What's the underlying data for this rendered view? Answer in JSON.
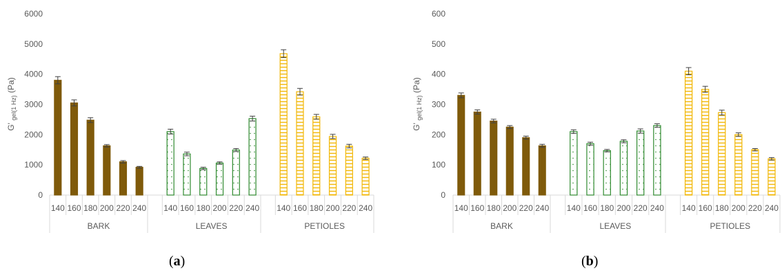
{
  "colors": {
    "bark": "#7f5a0a",
    "leaves": "#2f8a2f",
    "petioles": "#f2b705",
    "axis": "#d9d9d9",
    "text": "#595959",
    "error_bar": "#404040"
  },
  "fill_patterns": {
    "BARK": "solid",
    "LEAVES": "dotted",
    "PETIOLES": "horizontal-stripes"
  },
  "panels": [
    {
      "label_open": "(",
      "label_letter": "a",
      "label_close": ")"
    },
    {
      "label_open": "(",
      "label_letter": "b",
      "label_close": ")"
    }
  ],
  "chart_data": [
    {
      "type": "bar",
      "ylabel_main": "G'",
      "ylabel_sub": "gel(1 Hz)",
      "ylabel_unit": "(Pa)",
      "ylim": [
        0,
        6000
      ],
      "yticks": [
        0,
        1000,
        2000,
        3000,
        4000,
        5000,
        6000
      ],
      "grid": false,
      "groups": [
        {
          "name": "BARK",
          "categories": [
            "140",
            "160",
            "180",
            "200",
            "220",
            "240"
          ],
          "values": [
            3800,
            3050,
            2480,
            1630,
            1100,
            920
          ],
          "errors": [
            120,
            100,
            80,
            40,
            40,
            30
          ]
        },
        {
          "name": "LEAVES",
          "categories": [
            "140",
            "160",
            "180",
            "200",
            "220",
            "240"
          ],
          "values": [
            2100,
            1360,
            880,
            1060,
            1490,
            2530
          ],
          "errors": [
            80,
            60,
            40,
            40,
            50,
            80
          ]
        },
        {
          "name": "PETIOLES",
          "categories": [
            "140",
            "160",
            "180",
            "200",
            "220",
            "240"
          ],
          "values": [
            4680,
            3420,
            2590,
            1940,
            1620,
            1220
          ],
          "errors": [
            130,
            110,
            80,
            70,
            60,
            40
          ]
        }
      ]
    },
    {
      "type": "bar",
      "ylabel_main": "G'",
      "ylabel_sub": "gel(1 Hz)",
      "ylabel_unit": "(Pa)",
      "ylim": [
        0,
        600
      ],
      "yticks": [
        0,
        100,
        200,
        300,
        400,
        500,
        600
      ],
      "grid": false,
      "groups": [
        {
          "name": "BARK",
          "categories": [
            "140",
            "160",
            "180",
            "200",
            "220",
            "240"
          ],
          "values": [
            330,
            275,
            245,
            225,
            190,
            163
          ],
          "errors": [
            8,
            7,
            6,
            5,
            5,
            5
          ]
        },
        {
          "name": "LEAVES",
          "categories": [
            "140",
            "160",
            "180",
            "200",
            "220",
            "240"
          ],
          "values": [
            210,
            170,
            147,
            178,
            212,
            230
          ],
          "errors": [
            6,
            5,
            4,
            5,
            7,
            6
          ]
        },
        {
          "name": "PETIOLES",
          "categories": [
            "140",
            "160",
            "180",
            "200",
            "220",
            "240"
          ],
          "values": [
            410,
            350,
            273,
            200,
            150,
            120
          ],
          "errors": [
            12,
            10,
            8,
            6,
            4,
            4
          ]
        }
      ]
    }
  ]
}
